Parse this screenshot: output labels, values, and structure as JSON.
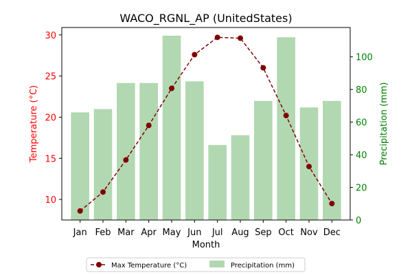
{
  "chart_data": {
    "type": "bar+line",
    "title": "WACO_RGNL_AP (UnitedStates)",
    "xlabel": "Month",
    "categories": [
      "Jan",
      "Feb",
      "Mar",
      "Apr",
      "May",
      "Jun",
      "Jul",
      "Aug",
      "Sep",
      "Oct",
      "Nov",
      "Dec"
    ],
    "left_axis": {
      "label": "Temperature (°C)",
      "color": "#ff0000",
      "ylim": [
        7.5,
        30.9
      ],
      "ticks": [
        "10",
        "15",
        "20",
        "25",
        "30"
      ]
    },
    "right_axis": {
      "label": "Precipitation (mm)",
      "color": "#008000",
      "ylim": [
        0,
        118
      ],
      "ticks": [
        "0",
        "20",
        "40",
        "60",
        "80",
        "100"
      ]
    },
    "series": [
      {
        "name": "Max Temperature (°C)",
        "kind": "line",
        "axis": "left",
        "color": "#800000",
        "values": [
          8.6,
          10.9,
          14.8,
          19.0,
          23.5,
          27.6,
          29.7,
          29.6,
          26.0,
          20.2,
          14.0,
          9.5
        ]
      },
      {
        "name": "Precipitation (mm)",
        "kind": "bar",
        "axis": "right",
        "color": "#b2d8b2",
        "values": [
          66,
          68,
          84,
          84,
          113,
          85,
          46,
          52,
          73,
          112,
          69,
          73
        ]
      }
    ],
    "legend_position": "bottom-center",
    "grid": false
  }
}
